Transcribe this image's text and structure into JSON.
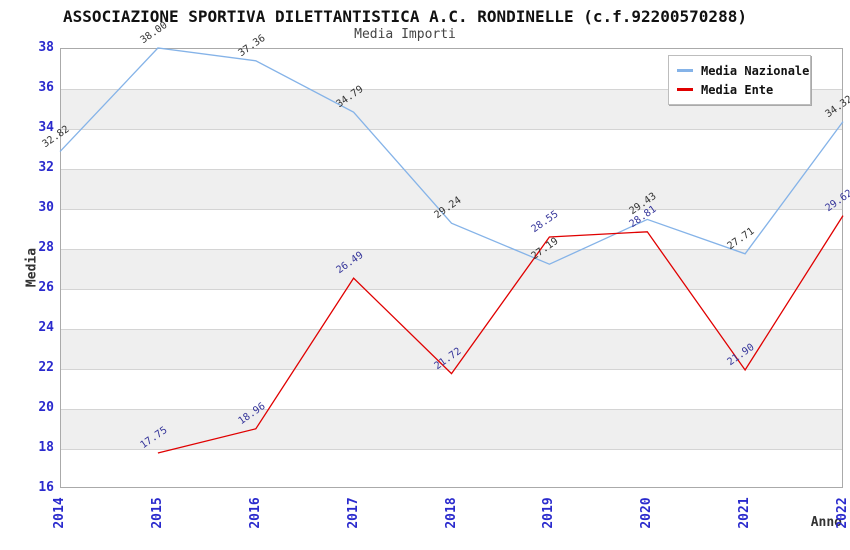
{
  "title": "ASSOCIAZIONE SPORTIVA DILETTANTISTICA A.C. RONDINELLE (c.f.92200570288)",
  "subtitle": "Media Importi",
  "y_axis": {
    "title": "Media",
    "ticks": [
      "38",
      "36",
      "34",
      "32",
      "30",
      "28",
      "26",
      "24",
      "22",
      "20",
      "18",
      "16"
    ]
  },
  "x_axis": {
    "title": "Anno",
    "ticks": [
      "2014",
      "2015",
      "2016",
      "2017",
      "2018",
      "2019",
      "2020",
      "2021",
      "2022"
    ]
  },
  "legend": {
    "items": [
      {
        "label": "Media Nazionale",
        "color": "#85B3E8"
      },
      {
        "label": "Media Ente",
        "color": "#E00000"
      }
    ]
  },
  "chart_data": {
    "type": "line",
    "x": [
      2014,
      2015,
      2016,
      2017,
      2018,
      2019,
      2020,
      2021,
      2022
    ],
    "series": [
      {
        "name": "Media Nazionale",
        "color": "#85B3E8",
        "label_color": "#333333",
        "values": [
          32.82,
          38.0,
          37.36,
          34.79,
          29.24,
          27.19,
          29.43,
          27.71,
          34.32
        ],
        "labels": [
          "32.82",
          "38.00",
          "37.36",
          "34.79",
          "29.24",
          "27.19",
          "29.43",
          "27.71",
          "34.32"
        ]
      },
      {
        "name": "Media Ente",
        "color": "#E00000",
        "label_color": "#333399",
        "values": [
          null,
          17.75,
          18.96,
          26.49,
          21.72,
          28.55,
          28.81,
          21.9,
          29.62
        ],
        "labels": [
          null,
          "17.75",
          "18.96",
          "26.49",
          "21.72",
          "28.55",
          "28.81",
          "21.90",
          "29.62"
        ]
      }
    ],
    "ylim": [
      16,
      38
    ],
    "y_tick_step": 2,
    "xlabel": "Anno",
    "ylabel": "Media",
    "grid": "horizontal, alternating shaded bands",
    "legend_position": "top-right"
  },
  "colors": {
    "background": "#FFFFFF",
    "band": "#EFEFEF",
    "gridline": "#D4D4D4",
    "frame": "#AAAAAA",
    "axis_tick_text": "#2A2ACD",
    "axis_title_text": "#333333",
    "series_nazionale": "#85B3E8",
    "series_ente": "#E00000",
    "point_label_nazionale": "#333333",
    "point_label_ente": "#333399"
  }
}
